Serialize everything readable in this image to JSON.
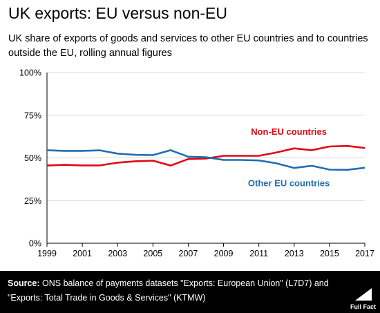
{
  "title": "UK exports: EU versus non-EU",
  "subtitle": "UK share of exports of goods and services to other EU countries and to countries outside the EU, rolling annual figures",
  "footer": {
    "source_label": "Source:",
    "source_text": "ONS balance of payments datasets \"Exports: European Union\" (L7D7) and \"Exports: Total Trade in Goods & Services\" (KTMW)",
    "logo_text": "Full Fact"
  },
  "colors": {
    "non_eu": "#e30613",
    "eu": "#1e6eb4",
    "grid": "#d9d9d9",
    "axis": "#000000"
  },
  "chart_data": {
    "type": "line",
    "title": "UK exports: EU versus non-EU",
    "xlabel": "",
    "ylabel": "",
    "xlim": [
      1999,
      2017
    ],
    "ylim": [
      0,
      100
    ],
    "y_ticks": [
      "0%",
      "25%",
      "50%",
      "75%",
      "100%"
    ],
    "y_tick_values": [
      0,
      25,
      50,
      75,
      100
    ],
    "x_ticks": [
      "1999",
      "2001",
      "2003",
      "2005",
      "2007",
      "2009",
      "2011",
      "2013",
      "2015",
      "2017"
    ],
    "x_tick_values": [
      1999,
      2001,
      2003,
      2005,
      2007,
      2009,
      2011,
      2013,
      2015,
      2017
    ],
    "grid": "horizontal",
    "x": [
      1999,
      2000,
      2001,
      2002,
      2003,
      2004,
      2005,
      2006,
      2007,
      2008,
      2009,
      2010,
      2011,
      2012,
      2013,
      2014,
      2015,
      2016,
      2017
    ],
    "series": [
      {
        "name": "Non-EU countries",
        "color": "#e30613",
        "values": [
          45.5,
          45.9,
          45.6,
          45.6,
          47.2,
          48.0,
          48.4,
          45.5,
          49.3,
          49.6,
          51.2,
          51.2,
          51.2,
          53.2,
          55.6,
          54.5,
          56.7,
          57.0,
          55.8
        ]
      },
      {
        "name": "Other EU countries",
        "color": "#1e6eb4",
        "values": [
          54.5,
          54.1,
          54.1,
          54.4,
          52.5,
          51.8,
          51.6,
          54.5,
          50.7,
          50.4,
          48.8,
          48.8,
          48.5,
          46.8,
          44.1,
          45.4,
          43.1,
          43.0,
          44.2
        ]
      }
    ]
  }
}
